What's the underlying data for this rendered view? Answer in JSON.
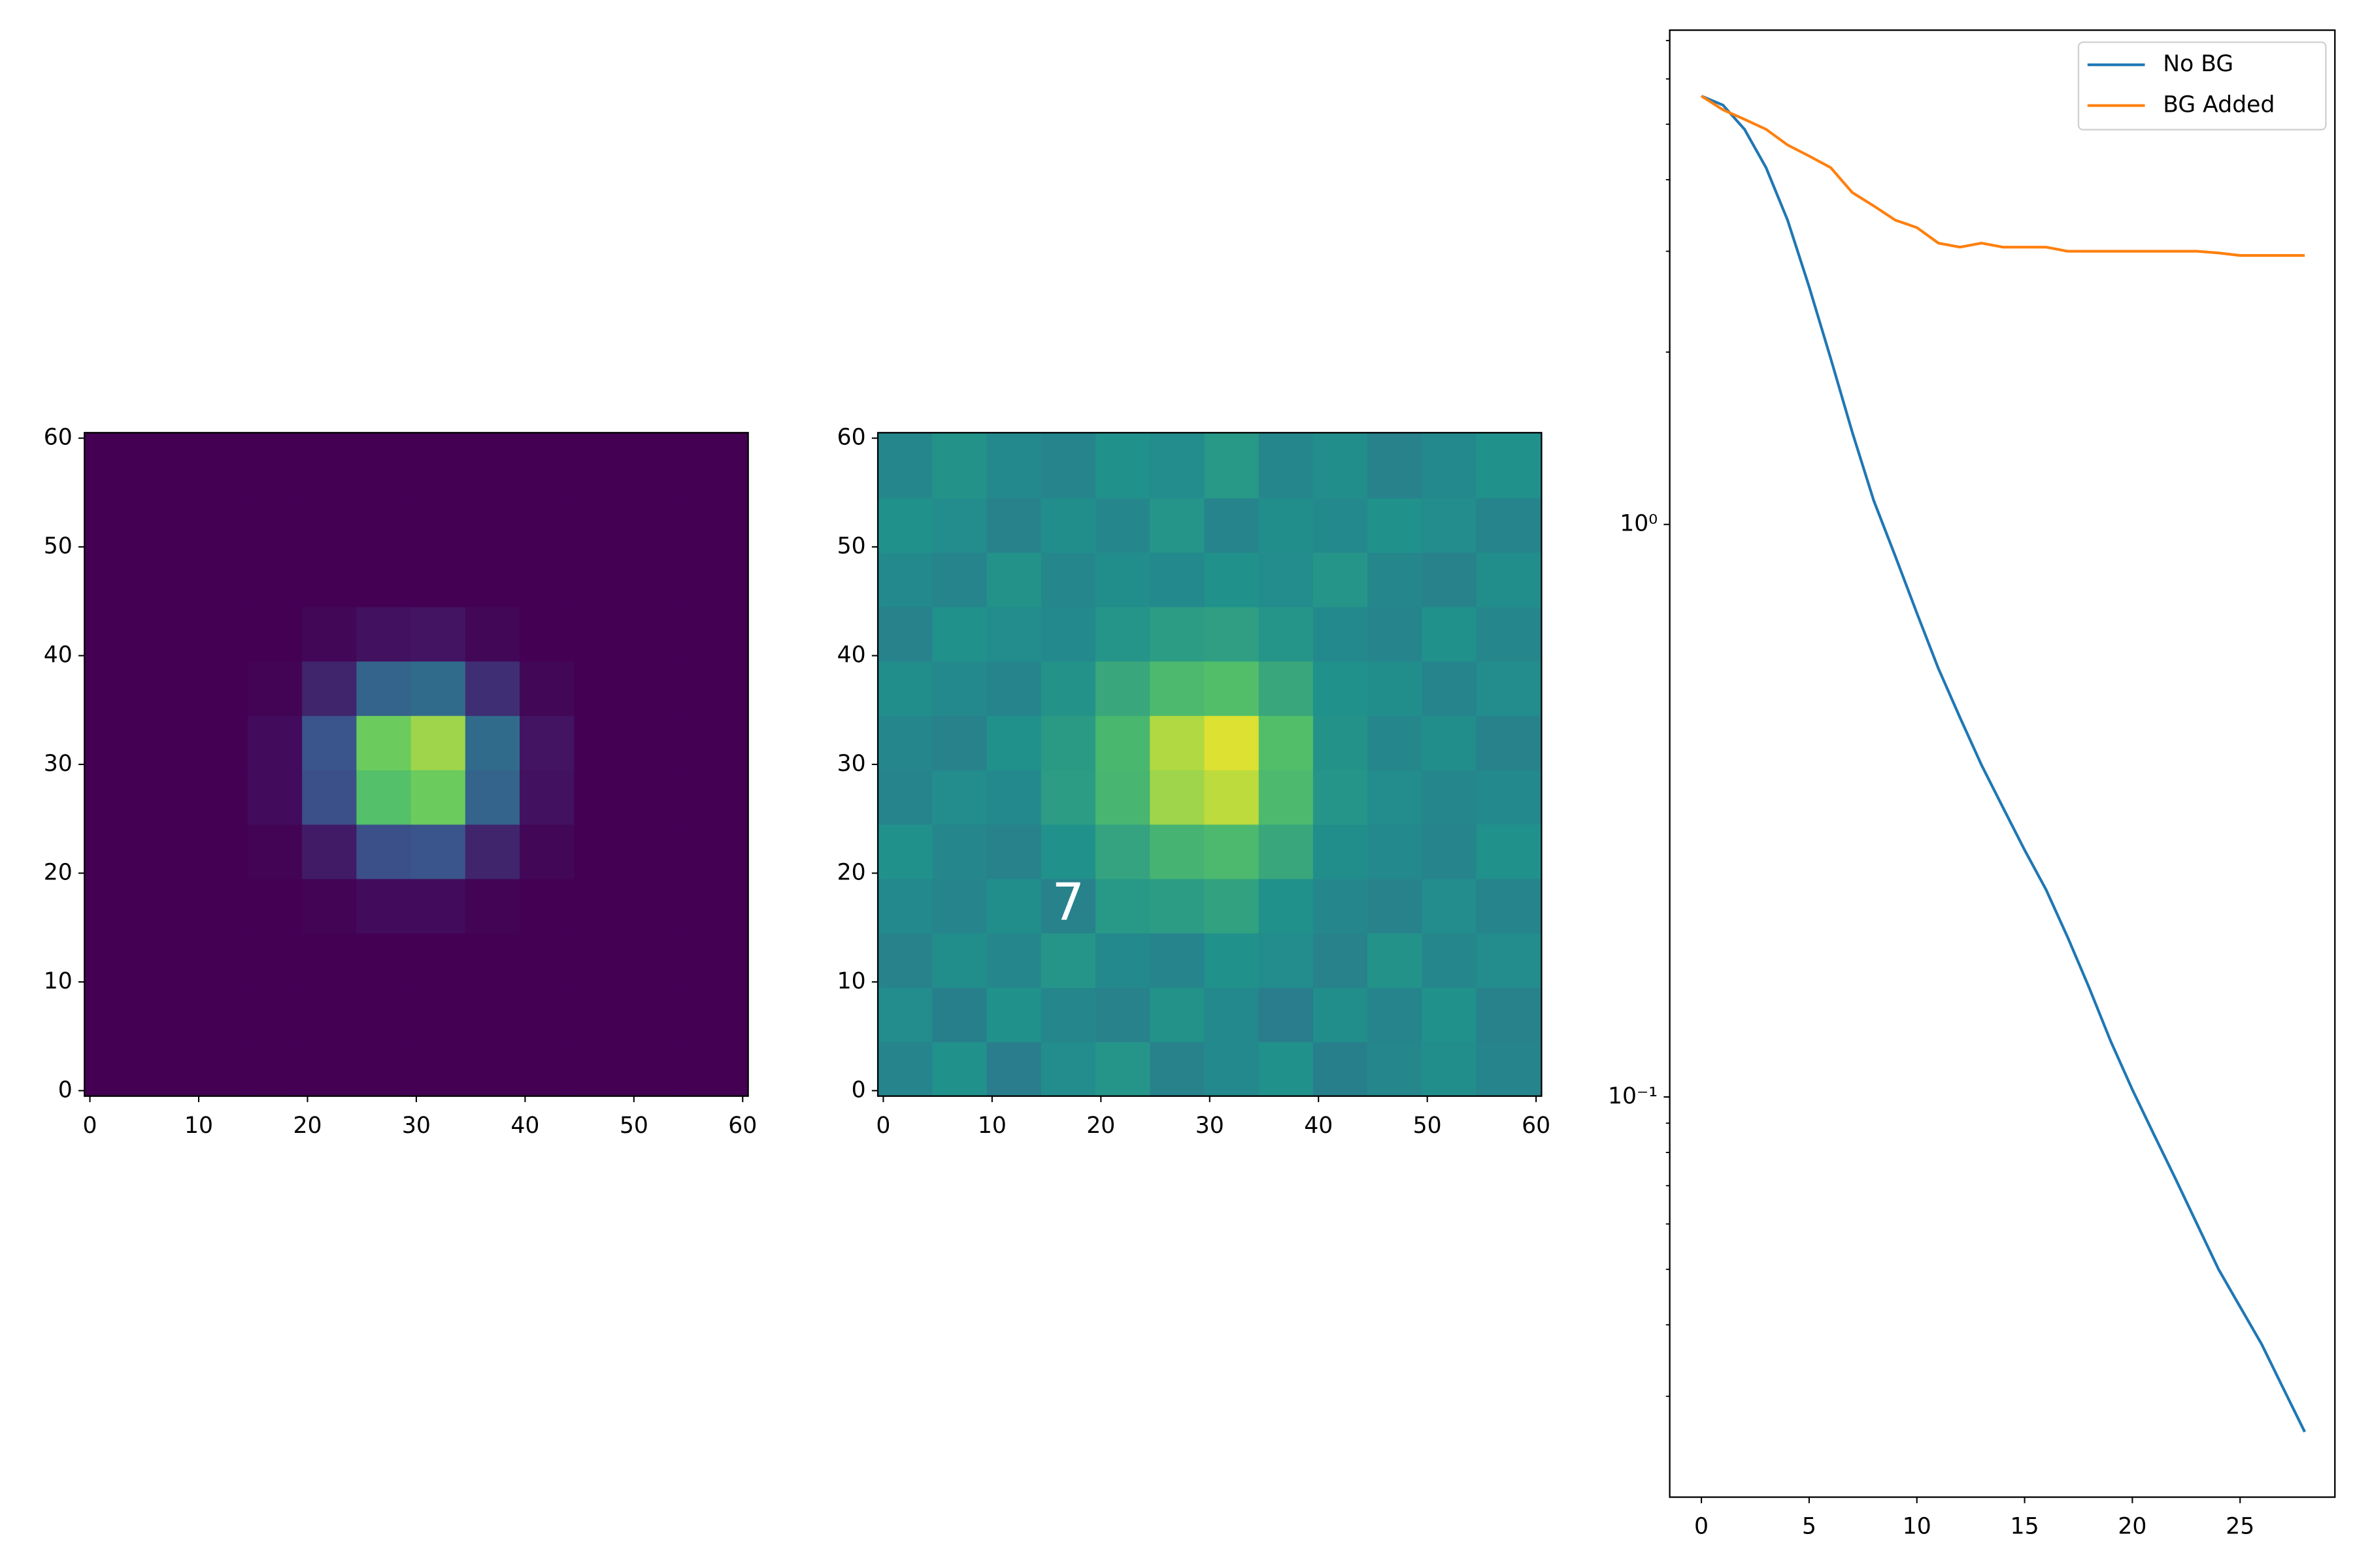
{
  "chart_data": [
    {
      "type": "heatmap",
      "colormap": "viridis",
      "zlim": [
        0,
        1
      ],
      "xlim": [
        -0.5,
        60.5
      ],
      "ylim": [
        -0.5,
        60.5
      ],
      "xticks": [
        0,
        10,
        20,
        30,
        40,
        50,
        60
      ],
      "yticks": [
        0,
        10,
        20,
        30,
        40,
        50,
        60
      ],
      "x_edges": [
        -0.5,
        4.5,
        9.5,
        14.5,
        19.5,
        24.5,
        29.5,
        34.5,
        39.5,
        44.5,
        49.5,
        54.5,
        60.5
      ],
      "y_edges": [
        -0.5,
        4.5,
        9.5,
        14.5,
        19.5,
        24.5,
        29.5,
        34.5,
        39.5,
        44.5,
        49.5,
        54.5,
        60.5
      ],
      "z": [
        [
          0,
          0,
          0,
          0,
          0,
          0,
          0,
          0,
          0,
          0,
          0,
          0
        ],
        [
          0,
          0,
          0,
          0,
          0,
          0,
          0,
          0,
          0,
          0,
          0,
          0
        ],
        [
          0,
          0,
          0,
          0,
          0,
          0,
          0,
          0,
          0,
          0,
          0,
          0
        ],
        [
          0,
          0,
          0,
          0,
          0.01,
          0.03,
          0.03,
          0.01,
          0,
          0,
          0,
          0
        ],
        [
          0,
          0,
          0,
          0.01,
          0.08,
          0.24,
          0.26,
          0.11,
          0.02,
          0,
          0,
          0
        ],
        [
          0,
          0,
          0,
          0.03,
          0.24,
          0.71,
          0.77,
          0.32,
          0.05,
          0,
          0,
          0
        ],
        [
          0,
          0,
          0,
          0.03,
          0.26,
          0.77,
          0.85,
          0.35,
          0.06,
          0,
          0,
          0
        ],
        [
          0,
          0,
          0,
          0.01,
          0.11,
          0.32,
          0.35,
          0.14,
          0.02,
          0,
          0,
          0
        ],
        [
          0,
          0,
          0,
          0,
          0.02,
          0.05,
          0.06,
          0.02,
          0,
          0,
          0,
          0
        ],
        [
          0,
          0,
          0,
          0,
          0,
          0,
          0,
          0,
          0,
          0,
          0,
          0
        ],
        [
          0,
          0,
          0,
          0,
          0,
          0,
          0,
          0,
          0,
          0,
          0,
          0
        ],
        [
          0,
          0,
          0,
          0,
          0,
          0,
          0,
          0,
          0,
          0,
          0,
          0
        ]
      ]
    },
    {
      "type": "heatmap",
      "colormap": "viridis",
      "zlim": [
        0,
        1
      ],
      "xlim": [
        -0.5,
        60.5
      ],
      "ylim": [
        -0.5,
        60.5
      ],
      "xticks": [
        0,
        10,
        20,
        30,
        40,
        50,
        60
      ],
      "yticks": [
        0,
        10,
        20,
        30,
        40,
        50,
        60
      ],
      "x_edges": [
        -0.5,
        4.5,
        9.5,
        14.5,
        19.5,
        24.5,
        29.5,
        34.5,
        39.5,
        44.5,
        49.5,
        54.5,
        60.5
      ],
      "y_edges": [
        -0.5,
        4.5,
        9.5,
        14.5,
        19.5,
        24.5,
        29.5,
        34.5,
        39.5,
        44.5,
        49.5,
        54.5,
        60.5
      ],
      "z": [
        [
          0.45,
          0.5,
          0.42,
          0.48,
          0.52,
          0.44,
          0.47,
          0.5,
          0.43,
          0.46,
          0.49,
          0.45
        ],
        [
          0.48,
          0.43,
          0.5,
          0.46,
          0.44,
          0.51,
          0.47,
          0.42,
          0.49,
          0.45,
          0.5,
          0.44
        ],
        [
          0.44,
          0.49,
          0.46,
          0.52,
          0.47,
          0.45,
          0.5,
          0.48,
          0.44,
          0.51,
          0.46,
          0.48
        ],
        [
          0.47,
          0.45,
          0.49,
          0.44,
          0.53,
          0.55,
          0.57,
          0.5,
          0.46,
          0.44,
          0.48,
          0.45
        ],
        [
          0.5,
          0.46,
          0.44,
          0.5,
          0.58,
          0.65,
          0.68,
          0.6,
          0.49,
          0.47,
          0.45,
          0.5
        ],
        [
          0.45,
          0.48,
          0.47,
          0.55,
          0.66,
          0.85,
          0.9,
          0.68,
          0.52,
          0.48,
          0.46,
          0.47
        ],
        [
          0.46,
          0.44,
          0.5,
          0.54,
          0.67,
          0.88,
          0.95,
          0.7,
          0.51,
          0.46,
          0.49,
          0.44
        ],
        [
          0.49,
          0.47,
          0.45,
          0.51,
          0.6,
          0.68,
          0.7,
          0.6,
          0.5,
          0.49,
          0.45,
          0.48
        ],
        [
          0.44,
          0.5,
          0.48,
          0.47,
          0.52,
          0.55,
          0.56,
          0.52,
          0.47,
          0.45,
          0.5,
          0.46
        ],
        [
          0.47,
          0.45,
          0.51,
          0.46,
          0.49,
          0.47,
          0.5,
          0.48,
          0.52,
          0.46,
          0.44,
          0.49
        ],
        [
          0.5,
          0.48,
          0.44,
          0.49,
          0.46,
          0.52,
          0.45,
          0.49,
          0.47,
          0.5,
          0.48,
          0.45
        ],
        [
          0.46,
          0.51,
          0.47,
          0.45,
          0.5,
          0.48,
          0.53,
          0.46,
          0.49,
          0.44,
          0.47,
          0.5
        ]
      ],
      "annotations": [
        {
          "text": "7",
          "x": 17,
          "y": 17,
          "color": "#ffffff"
        }
      ]
    },
    {
      "type": "line",
      "ylog": true,
      "legend": "upper right",
      "xlim": [
        -1.47,
        29.4
      ],
      "ylim": [
        0.02,
        7.3
      ],
      "xticks": [
        0,
        5,
        10,
        15,
        20,
        25
      ],
      "yticks": [
        {
          "value": 1,
          "label": "10⁰"
        },
        {
          "value": 0.1,
          "label": "10⁻¹"
        }
      ],
      "yminorticks": [
        0.03,
        0.04,
        0.05,
        0.06,
        0.07,
        0.08,
        0.09,
        2,
        3,
        4,
        5,
        6,
        7
      ],
      "x": [
        0,
        1,
        2,
        3,
        4,
        5,
        6,
        7,
        8,
        9,
        10,
        11,
        12,
        13,
        14,
        15,
        16,
        17,
        18,
        19,
        20,
        21,
        22,
        23,
        24,
        25,
        26,
        27,
        28
      ],
      "series": [
        {
          "name": "No BG",
          "color": "#1f77b4",
          "values": [
            5.6,
            5.4,
            4.9,
            4.2,
            3.4,
            2.6,
            1.95,
            1.45,
            1.1,
            0.88,
            0.7,
            0.56,
            0.46,
            0.38,
            0.32,
            0.27,
            0.23,
            0.19,
            0.155,
            0.125,
            0.103,
            0.086,
            0.072,
            0.06,
            0.05,
            0.043,
            0.037,
            0.031,
            0.026
          ]
        },
        {
          "name": "BG Added",
          "color": "#ff7f0e",
          "values": [
            5.6,
            5.3,
            5.1,
            4.9,
            4.6,
            4.4,
            4.2,
            3.8,
            3.6,
            3.4,
            3.3,
            3.1,
            3.05,
            3.1,
            3.05,
            3.05,
            3.05,
            3.0,
            3.0,
            3.0,
            3.0,
            3.0,
            3.0,
            3.0,
            2.98,
            2.95,
            2.95,
            2.95,
            2.95
          ]
        }
      ]
    }
  ]
}
